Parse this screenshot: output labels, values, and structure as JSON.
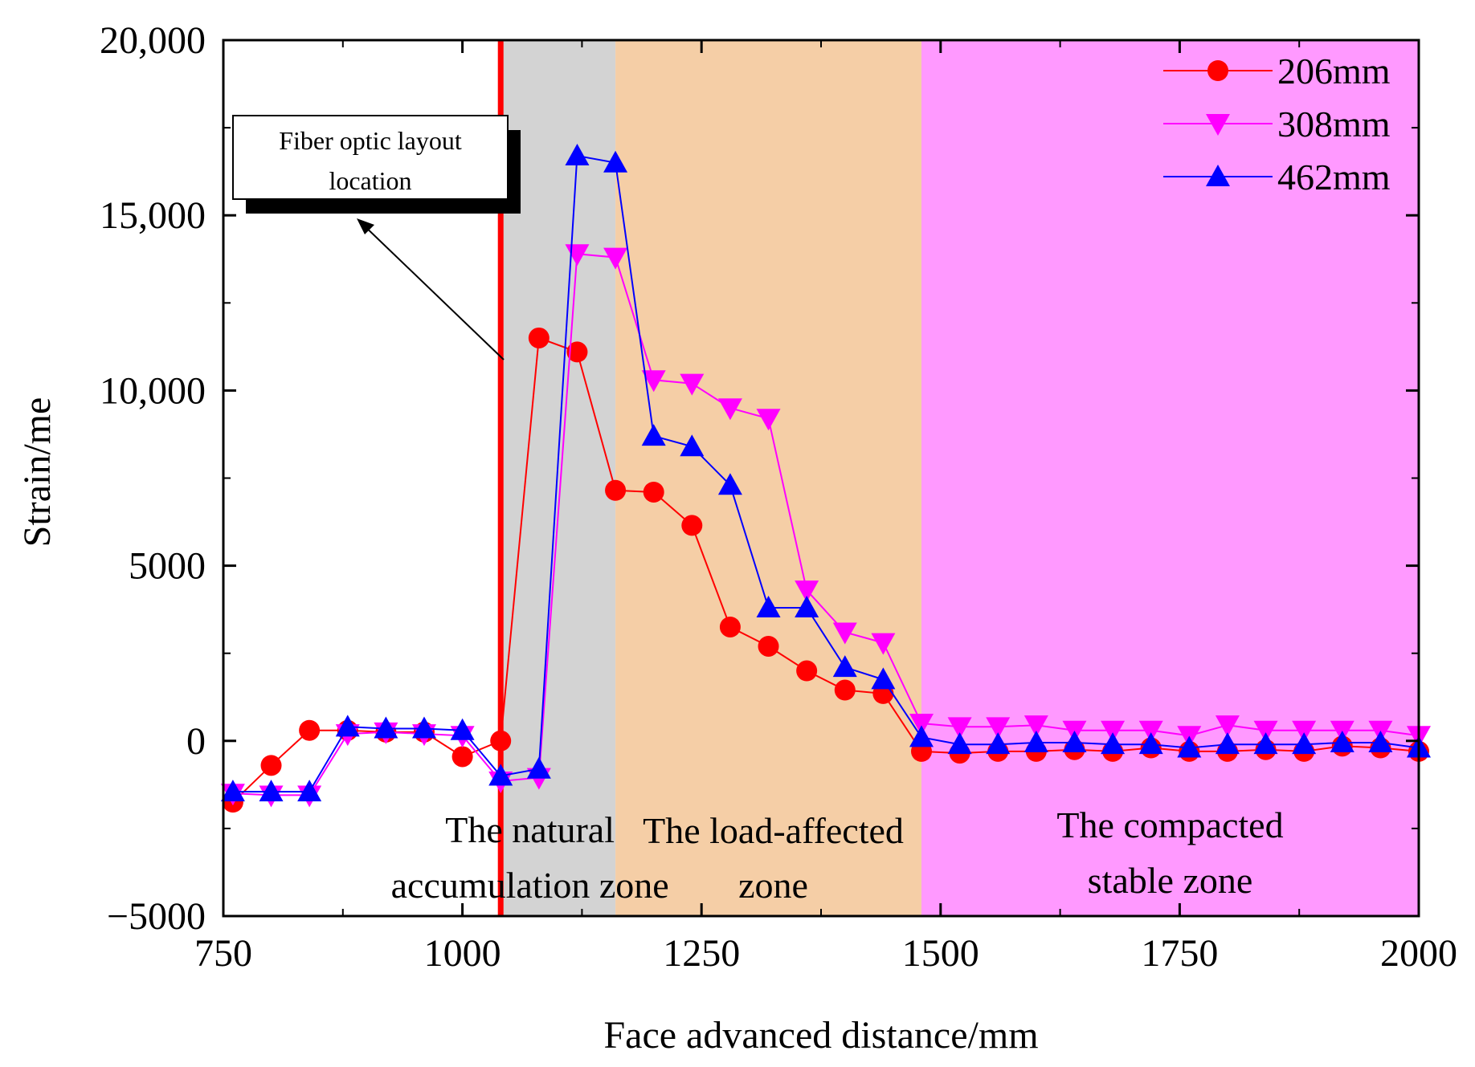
{
  "chart_data": {
    "type": "line",
    "title": "",
    "xlabel": "Face advanced distance/mm",
    "ylabel": "Strain/me",
    "xlim": [
      750,
      2000
    ],
    "ylim": [
      -5000,
      20000
    ],
    "x_ticks": [
      750,
      1000,
      1250,
      1500,
      1750,
      2000
    ],
    "x_tick_labels": [
      "750",
      "1000",
      "1250",
      "1500",
      "1750",
      "2000"
    ],
    "y_ticks": [
      -5000,
      0,
      5000,
      10000,
      15000,
      20000
    ],
    "y_tick_labels": [
      "−5000",
      "0",
      "5000",
      "10,000",
      "15,000",
      "20,000"
    ],
    "grid": false,
    "legend_position": "top-right",
    "zones": [
      {
        "from": 1040,
        "to": 1160,
        "color": "#d3d3d3",
        "label_lines": [
          "The natural",
          "accumulation zone"
        ]
      },
      {
        "from": 1160,
        "to": 1480,
        "color": "#f5cea6",
        "label_lines": [
          "The load-affected",
          "zone"
        ]
      },
      {
        "from": 1480,
        "to": 2000,
        "color": "#ff99ff",
        "label_lines": [
          "The compacted",
          "stable zone"
        ]
      }
    ],
    "reference_line": {
      "x": 1040,
      "color": "#ff0000"
    },
    "annotation": {
      "lines": [
        "Fiber optic layout",
        "location"
      ]
    },
    "series": [
      {
        "name": "206mm",
        "color": "#ff0000",
        "marker": "circle",
        "x": [
          760,
          800,
          840,
          880,
          920,
          960,
          1000,
          1040,
          1080,
          1120,
          1160,
          1200,
          1240,
          1280,
          1320,
          1360,
          1400,
          1440,
          1480,
          1520,
          1560,
          1600,
          1640,
          1680,
          1720,
          1760,
          1800,
          1840,
          1880,
          1920,
          1960,
          2000
        ],
        "y": [
          -1750,
          -700,
          300,
          300,
          250,
          250,
          -450,
          0,
          11500,
          11100,
          7150,
          7100,
          6150,
          3250,
          2700,
          2000,
          1450,
          1350,
          -300,
          -350,
          -300,
          -300,
          -250,
          -300,
          -200,
          -300,
          -300,
          -250,
          -300,
          -150,
          -200,
          -300
        ]
      },
      {
        "name": "308mm",
        "color": "#ff00ff",
        "marker": "triangle-down",
        "x": [
          760,
          800,
          840,
          880,
          920,
          960,
          1000,
          1040,
          1080,
          1120,
          1160,
          1200,
          1240,
          1280,
          1320,
          1360,
          1400,
          1440,
          1480,
          1520,
          1560,
          1600,
          1640,
          1680,
          1720,
          1760,
          1800,
          1840,
          1880,
          1920,
          1960,
          2000
        ],
        "y": [
          -1500,
          -1550,
          -1550,
          200,
          250,
          200,
          150,
          -1150,
          -1050,
          13900,
          13800,
          10300,
          10200,
          9500,
          9200,
          4300,
          3100,
          2800,
          500,
          400,
          400,
          450,
          300,
          300,
          300,
          150,
          450,
          300,
          300,
          300,
          300,
          150
        ]
      },
      {
        "name": "462mm",
        "color": "#0000ff",
        "marker": "triangle-up",
        "x": [
          760,
          800,
          840,
          880,
          920,
          960,
          1000,
          1040,
          1080,
          1120,
          1160,
          1200,
          1240,
          1280,
          1320,
          1360,
          1400,
          1440,
          1480,
          1520,
          1560,
          1600,
          1640,
          1680,
          1720,
          1760,
          1800,
          1840,
          1880,
          1920,
          1960,
          2000
        ],
        "y": [
          -1450,
          -1450,
          -1450,
          400,
          350,
          350,
          300,
          -1000,
          -800,
          16700,
          16500,
          8700,
          8400,
          7300,
          3800,
          3800,
          2100,
          1750,
          100,
          -100,
          -100,
          -50,
          -50,
          -100,
          -100,
          -200,
          -100,
          -100,
          -100,
          -50,
          -50,
          -200
        ]
      }
    ]
  }
}
